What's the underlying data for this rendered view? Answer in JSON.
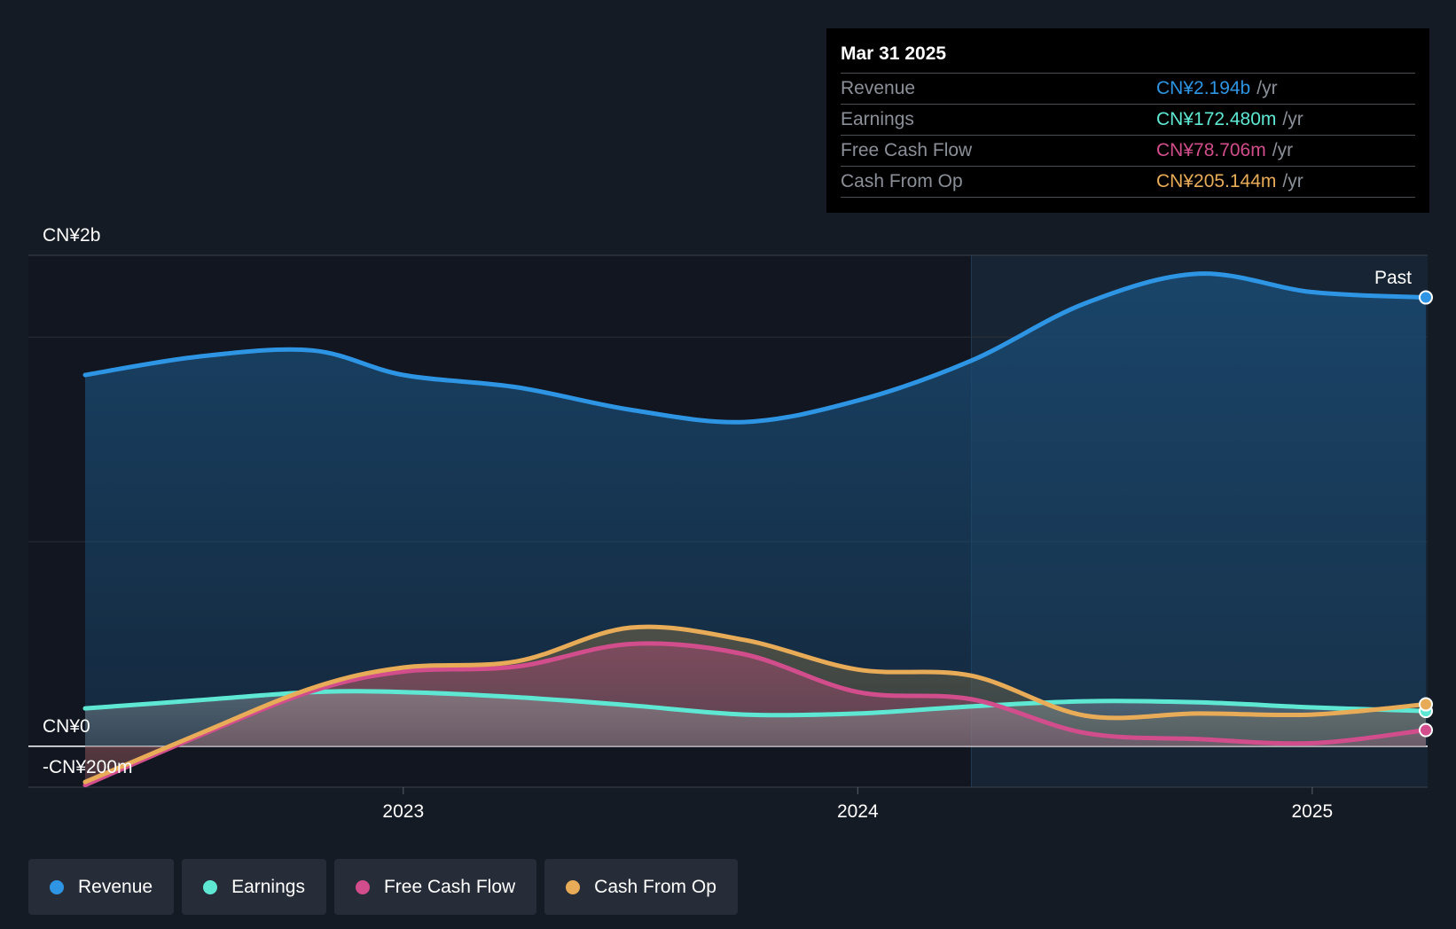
{
  "tooltip": {
    "date": "Mar 31 2025",
    "rows": [
      {
        "label": "Revenue",
        "value": "CN¥2.194b",
        "unit": "/yr",
        "color": "#2d95e3"
      },
      {
        "label": "Earnings",
        "value": "CN¥172.480m",
        "unit": "/yr",
        "color": "#5ee8d3"
      },
      {
        "label": "Free Cash Flow",
        "value": "CN¥78.706m",
        "unit": "/yr",
        "color": "#d14d8c"
      },
      {
        "label": "Cash From Op",
        "value": "CN¥205.144m",
        "unit": "/yr",
        "color": "#e8ac58"
      }
    ]
  },
  "legend": [
    {
      "label": "Revenue",
      "color": "#2d95e3"
    },
    {
      "label": "Earnings",
      "color": "#5ee8d3"
    },
    {
      "label": "Free Cash Flow",
      "color": "#d14d8c"
    },
    {
      "label": "Cash From Op",
      "color": "#e8ac58"
    }
  ],
  "past_label": "Past",
  "chart_data": {
    "type": "area",
    "y_tick_labels": [
      {
        "value": 2400,
        "label": "CN¥2b"
      },
      {
        "value": 0,
        "label": "CN¥0"
      },
      {
        "value": -200,
        "label": "-CN¥200m"
      }
    ],
    "ylim": [
      -200,
      2400
    ],
    "xlim": [
      2022.3,
      2025.25
    ],
    "x_ticks": [
      {
        "value": 2023.0,
        "label": "2023"
      },
      {
        "value": 2024.0,
        "label": "2024"
      },
      {
        "value": 2025.0,
        "label": "2025"
      }
    ],
    "grid_values": [
      2000,
      1000
    ],
    "past_start_x": 2024.25,
    "series": [
      {
        "name": "Revenue",
        "color": "#2d95e3",
        "x": [
          2022.3,
          2022.55,
          2022.8,
          2023.0,
          2023.25,
          2023.5,
          2023.75,
          2024.0,
          2024.25,
          2024.5,
          2024.75,
          2025.0,
          2025.25
        ],
        "y": [
          1815,
          1905,
          1935,
          1815,
          1755,
          1645,
          1585,
          1690,
          1885,
          2165,
          2310,
          2220,
          2194
        ]
      },
      {
        "name": "Earnings",
        "color": "#5ee8d3",
        "x": [
          2022.3,
          2022.55,
          2022.8,
          2023.0,
          2023.25,
          2023.5,
          2023.75,
          2024.0,
          2024.25,
          2024.5,
          2024.75,
          2025.0,
          2025.25
        ],
        "y": [
          185,
          225,
          265,
          265,
          240,
          200,
          155,
          160,
          195,
          220,
          215,
          190,
          172
        ]
      },
      {
        "name": "Free Cash Flow",
        "color": "#d14d8c",
        "x": [
          2022.3,
          2022.55,
          2022.8,
          2023.0,
          2023.25,
          2023.5,
          2023.75,
          2024.0,
          2024.25,
          2024.5,
          2024.75,
          2025.0,
          2025.25
        ],
        "y": [
          -190,
          50,
          270,
          365,
          390,
          500,
          450,
          265,
          230,
          65,
          35,
          15,
          79
        ]
      },
      {
        "name": "Cash From Op",
        "color": "#e8ac58",
        "x": [
          2022.3,
          2022.55,
          2022.8,
          2023.0,
          2023.25,
          2023.5,
          2023.75,
          2024.0,
          2024.25,
          2024.5,
          2024.75,
          2025.0,
          2025.25
        ],
        "y": [
          -175,
          60,
          285,
          385,
          415,
          580,
          520,
          375,
          345,
          150,
          160,
          155,
          205
        ]
      }
    ]
  }
}
